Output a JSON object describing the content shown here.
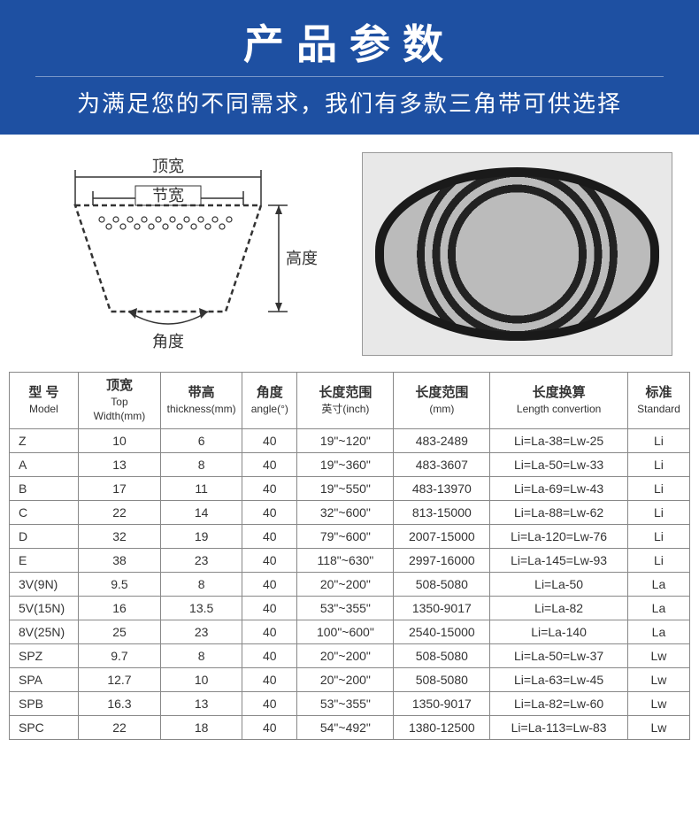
{
  "header": {
    "title": "产品参数",
    "subtitle": "为满足您的不同需求，我们有多款三角带可供选择"
  },
  "diagram": {
    "top_width_label": "顶宽",
    "pitch_width_label": "节宽",
    "height_label": "高度",
    "angle_label": "角度"
  },
  "photo": {
    "alt": "三角带产品实物图"
  },
  "table": {
    "columns": [
      {
        "cn": "型 号",
        "en": "Model"
      },
      {
        "cn": "顶宽",
        "en": "Top Width(mm)"
      },
      {
        "cn": "带高",
        "en": "thickness(mm)"
      },
      {
        "cn": "角度",
        "en": "angle(°)"
      },
      {
        "cn": "长度范围",
        "en": "英寸(inch)"
      },
      {
        "cn": "长度范围",
        "en": "(mm)"
      },
      {
        "cn": "长度换算",
        "en": "Length convertion"
      },
      {
        "cn": "标准",
        "en": "Standard"
      }
    ],
    "rows": [
      [
        "Z",
        "10",
        "6",
        "40",
        "19\"~120\"",
        "483-2489",
        "Li=La-38=Lw-25",
        "Li"
      ],
      [
        "A",
        "13",
        "8",
        "40",
        "19\"~360\"",
        "483-3607",
        "Li=La-50=Lw-33",
        "Li"
      ],
      [
        "B",
        "17",
        "11",
        "40",
        "19\"~550\"",
        "483-13970",
        "Li=La-69=Lw-43",
        "Li"
      ],
      [
        "C",
        "22",
        "14",
        "40",
        "32\"~600\"",
        "813-15000",
        "Li=La-88=Lw-62",
        "Li"
      ],
      [
        "D",
        "32",
        "19",
        "40",
        "79\"~600\"",
        "2007-15000",
        "Li=La-120=Lw-76",
        "Li"
      ],
      [
        "E",
        "38",
        "23",
        "40",
        "118\"~630\"",
        "2997-16000",
        "Li=La-145=Lw-93",
        "Li"
      ],
      [
        "3V(9N)",
        "9.5",
        "8",
        "40",
        "20\"~200\"",
        "508-5080",
        "Li=La-50",
        "La"
      ],
      [
        "5V(15N)",
        "16",
        "13.5",
        "40",
        "53\"~355\"",
        "1350-9017",
        "Li=La-82",
        "La"
      ],
      [
        "8V(25N)",
        "25",
        "23",
        "40",
        "100\"~600\"",
        "2540-15000",
        "Li=La-140",
        "La"
      ],
      [
        "SPZ",
        "9.7",
        "8",
        "40",
        "20\"~200\"",
        "508-5080",
        "Li=La-50=Lw-37",
        "Lw"
      ],
      [
        "SPA",
        "12.7",
        "10",
        "40",
        "20\"~200\"",
        "508-5080",
        "Li=La-63=Lw-45",
        "Lw"
      ],
      [
        "SPB",
        "16.3",
        "13",
        "40",
        "53\"~355\"",
        "1350-9017",
        "Li=La-82=Lw-60",
        "Lw"
      ],
      [
        "SPC",
        "22",
        "18",
        "40",
        "54\"~492\"",
        "1380-12500",
        "Li=La-113=Lw-83",
        "Lw"
      ]
    ],
    "col_widths_pct": [
      10,
      12,
      11,
      8,
      14,
      14,
      20,
      9
    ]
  },
  "colors": {
    "header_bg": "#1e50a2",
    "header_text": "#ffffff",
    "border": "#888888",
    "text": "#333333",
    "background": "#ffffff"
  }
}
